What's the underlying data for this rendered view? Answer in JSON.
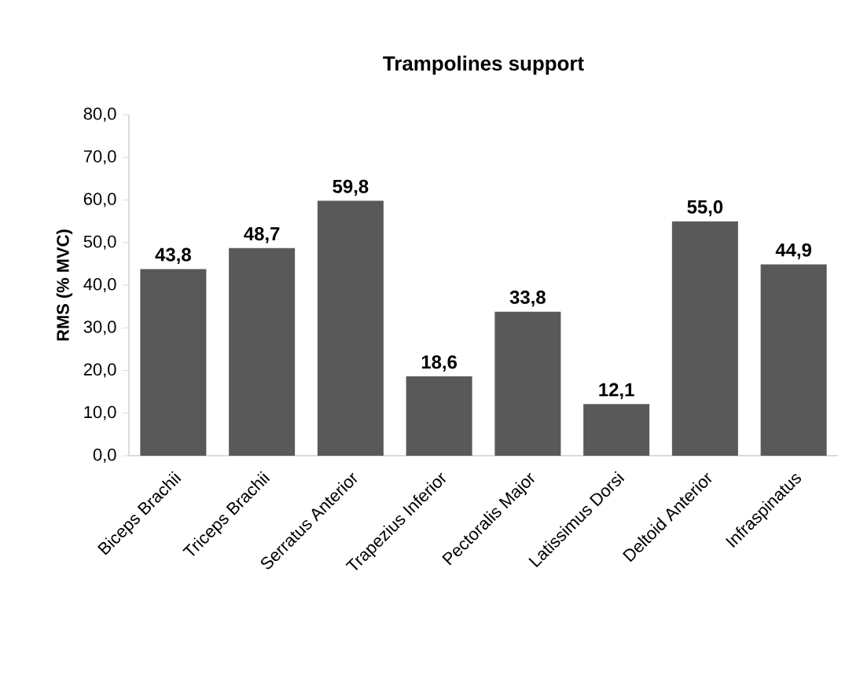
{
  "chart_data": {
    "type": "bar",
    "title": "Trampolines support",
    "ylabel": "RMS (% MVC)",
    "categories": [
      "Biceps Brachii",
      "Triceps Brachii",
      "Serratus Anterior",
      "Trapezius Inferior",
      "Pectoralis Major",
      "Latissimus Dorsi",
      "Deltoid Anterior",
      "Infraspinatus"
    ],
    "values": [
      43.8,
      48.7,
      59.8,
      18.6,
      33.8,
      12.1,
      55.0,
      44.9
    ],
    "value_labels": [
      "43,8",
      "48,7",
      "59,8",
      "18,6",
      "33,8",
      "12,1",
      "55,0",
      "44,9"
    ],
    "color": "#595959",
    "ylim": [
      0,
      80
    ],
    "yticks": [
      {
        "value": 0,
        "label": "0,0"
      },
      {
        "value": 10,
        "label": "10,0"
      },
      {
        "value": 20,
        "label": "20,0"
      },
      {
        "value": 30,
        "label": "30,0"
      },
      {
        "value": 40,
        "label": "40,0"
      },
      {
        "value": 50,
        "label": "50,0"
      },
      {
        "value": 60,
        "label": "60,0"
      },
      {
        "value": 70,
        "label": "70,0"
      },
      {
        "value": 80,
        "label": "80,0"
      }
    ]
  }
}
